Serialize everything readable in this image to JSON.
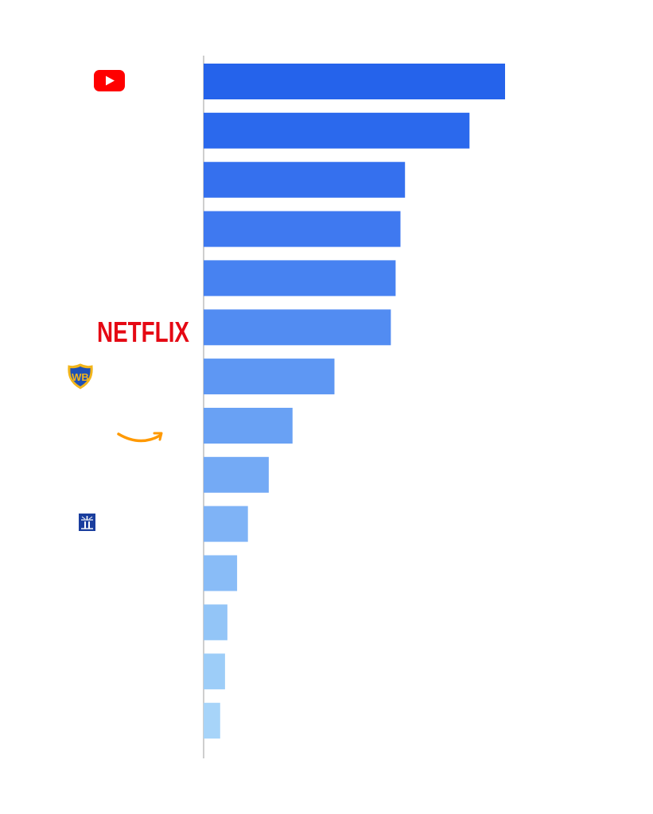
{
  "chart_data": {
    "type": "bar",
    "orientation": "horizontal",
    "title": "",
    "xlabel": "",
    "ylabel": "",
    "grid": false,
    "legend": "none",
    "categories_shown_as": "logos",
    "logos": [
      {
        "row": 1,
        "icon": "youtube-logo"
      },
      {
        "row": 6,
        "icon": "netflix-logo",
        "text": "NETFLIX"
      },
      {
        "row": 7,
        "icon": "warner-bros-logo",
        "text": "WB"
      },
      {
        "row": 8,
        "icon": "amazon-smile-logo"
      },
      {
        "row": 10,
        "icon": "lighthouse-logo"
      }
    ],
    "values": [
      100,
      88.2,
      66.8,
      65.3,
      63.7,
      62.1,
      43.4,
      29.5,
      21.6,
      14.7,
      11.1,
      7.9,
      7.1,
      5.5
    ],
    "xlim": [
      0,
      100
    ],
    "colors": [
      "#2563eb",
      "#2b69ed",
      "#3570ee",
      "#3f79f0",
      "#4782f1",
      "#528cf2",
      "#5e97f3",
      "#69a1f4",
      "#74aaf5",
      "#7fb3f6",
      "#89bcf7",
      "#93c5f7",
      "#9dcdf8",
      "#a7d4f9"
    ]
  },
  "brand_colors": {
    "youtube": "#ff0000",
    "netflix": "#e50914",
    "warner_bros_blue": "#1e4fb5",
    "warner_bros_gold": "#f2b51b",
    "amazon_orange": "#ff9900",
    "lighthouse_blue": "#1a3e9e"
  }
}
